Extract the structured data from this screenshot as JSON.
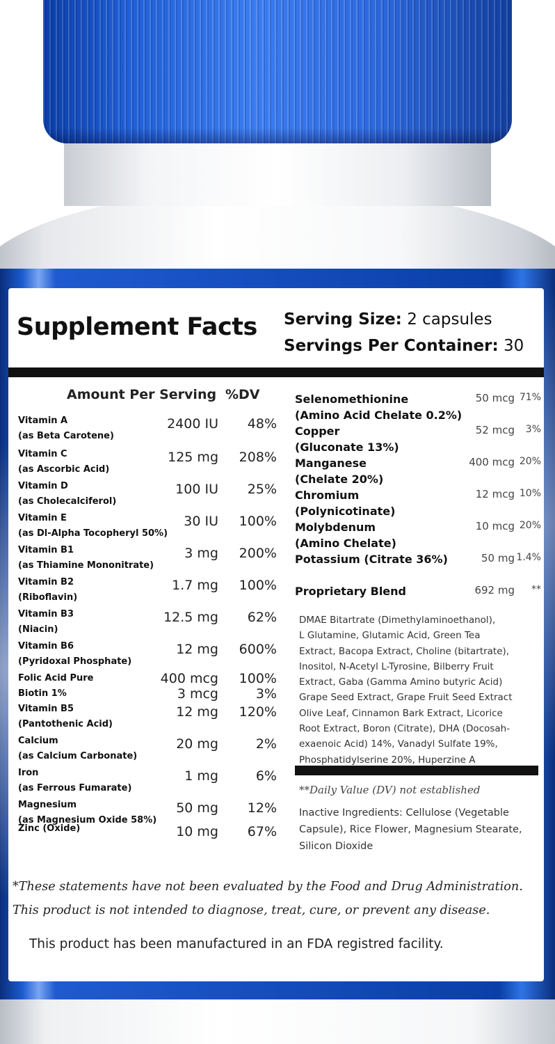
{
  "label": {
    "title": "Supplement Facts",
    "serving_size_label": "Serving Size:",
    "serving_size_value": "2 capsules",
    "servings_per_container_label": "Servings Per Container:",
    "servings_per_container_value": "30",
    "amount_per_serving_header": "Amount Per Serving",
    "dv_header": "%DV"
  },
  "left_nutrients": [
    {
      "name": "Vitamin A",
      "sub": "(as Beta Carotene)",
      "amount": "2400 IU",
      "dv": "48%"
    },
    {
      "name": "Vitamin C",
      "sub": "(as Ascorbic Acid)",
      "amount": "125 mg",
      "dv": "208%"
    },
    {
      "name": "Vitamin D",
      "sub": "(as Cholecalciferol)",
      "amount": "100 IU",
      "dv": "25%"
    },
    {
      "name": "Vitamin E",
      "sub": "(as Dl-Alpha Tocopheryl 50%)",
      "amount": "30 IU",
      "dv": "100%"
    },
    {
      "name": "Vitamin B1",
      "sub": "(as Thiamine Mononitrate)",
      "amount": "3 mg",
      "dv": "200%"
    },
    {
      "name": "Vitamin B2",
      "sub": "(Riboflavin)",
      "amount": "1.7 mg",
      "dv": "100%"
    },
    {
      "name": "Vitamin B3",
      "sub": "(Niacin)",
      "amount": "12.5 mg",
      "dv": "62%"
    },
    {
      "name": "Vitamin B6",
      "sub": "(Pyridoxal Phosphate)",
      "amount": "12 mg",
      "dv": "600%"
    },
    {
      "name": "Folic Acid Pure",
      "sub": "",
      "amount": "400 mcg",
      "dv": "100%"
    },
    {
      "name": "Biotin 1%",
      "sub": "",
      "amount": "3 mcg",
      "dv": "3%"
    },
    {
      "name": "Vitamin B5",
      "sub": "(Pantothenic Acid)",
      "amount": "12 mg",
      "dv": "120%"
    },
    {
      "name": "Calcium",
      "sub": "(as Calcium Carbonate)",
      "amount": "20 mg",
      "dv": "2%"
    },
    {
      "name": "Iron",
      "sub": "(as Ferrous Fumarate)",
      "amount": "1 mg",
      "dv": "6%"
    },
    {
      "name": "Magnesium",
      "sub": "(as Magnesium Oxide 58%)",
      "amount": "50 mg",
      "dv": "12%"
    },
    {
      "name": "Zinc (Oxide)",
      "sub": "",
      "amount": "10 mg",
      "dv": "67%"
    }
  ],
  "right_nutrients": [
    {
      "name": "Selenomethionine",
      "sub": "(Amino Acid Chelate 0.2%)",
      "amount": "50 mcg",
      "dv": "71%"
    },
    {
      "name": "Copper",
      "sub": "(Gluconate 13%)",
      "amount": "52 mcg",
      "dv": "3%"
    },
    {
      "name": "Manganese",
      "sub": "(Chelate 20%)",
      "amount": "400 mcg",
      "dv": "20%"
    },
    {
      "name": "Chromium",
      "sub": "(Polynicotinate)",
      "amount": "12 mcg",
      "dv": "10%"
    },
    {
      "name": "Molybdenum",
      "sub": "(Amino Chelate)",
      "amount": "10 mcg",
      "dv": "20%"
    },
    {
      "name": "Potassium (Citrate 36%)",
      "sub": "",
      "amount": "50 mg",
      "dv": "1.4%"
    },
    {
      "name": "Proprietary Blend",
      "sub": "",
      "amount": "692 mg",
      "dv": "**"
    }
  ],
  "blend_lines": [
    "DMAE Bitartrate (Dimethylaminoethanol),",
    "L Glutamine, Glutamic Acid, Green Tea",
    "Extract, Bacopa Extract, Choline (bitartrate),",
    "Inositol, N-Acetyl L-Tyrosine, Bilberry Fruit",
    "Extract, Gaba (Gamma Amino butyric Acid)",
    "Grape Seed Extract, Grape Fruit Seed Extract",
    "Olive Leaf, Cinnamon Bark Extract, Licorice",
    "Root Extract, Boron (Citrate), DHA (Docosah-",
    "exaenoic Acid) 14%, Vanadyl Sulfate 19%,",
    "Phosphatidylserine 20%, Huperzine A"
  ],
  "dv_note": "**Daily Value (DV) not established",
  "inactive_lines": [
    "Inactive Ingredients: Cellulose (Vegetable",
    "Capsule), Rice Flower, Magnesium Stearate,",
    "Silicon Dioxide"
  ],
  "disclaimer_line1": "*These statements have not been evaluated by the Food and Drug Administration.",
  "disclaimer_line2": "This product is not intended to diagnose, treat, cure, or prevent any disease.",
  "fda_line": "This product has been manufactured in an FDA registred facility.",
  "colors": {
    "cap": "#2e6ae0",
    "label_frame": "#1c5ad0",
    "text": "#111111"
  }
}
